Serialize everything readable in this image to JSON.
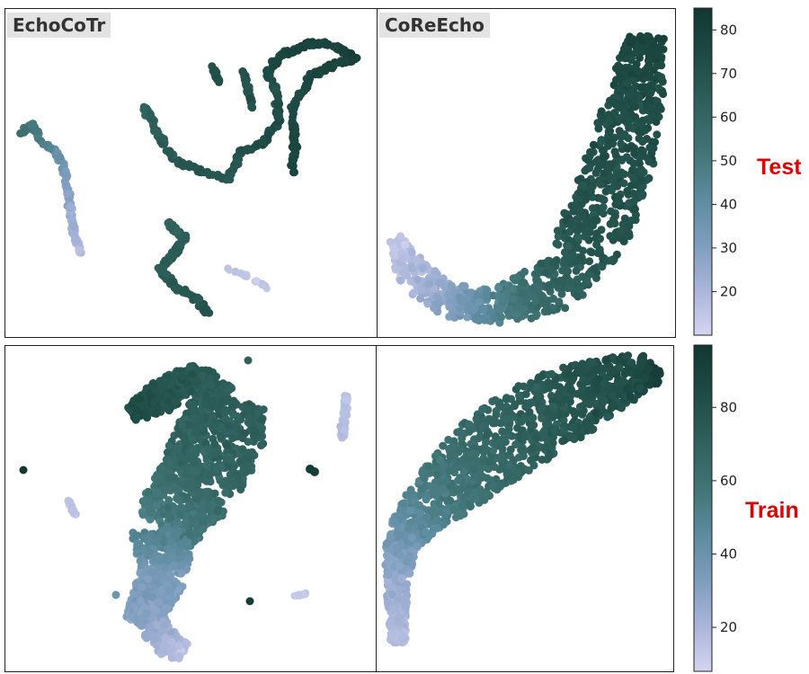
{
  "chart_data": {
    "type": "scatter",
    "panels": [
      {
        "row": "Test",
        "method": "EchoCoTr"
      },
      {
        "row": "Test",
        "method": "CoReEcho"
      },
      {
        "row": "Train",
        "method": ""
      },
      {
        "row": "Train",
        "method": ""
      }
    ],
    "rows": [
      {
        "label": "Test",
        "colorbar": {
          "min": 10,
          "max": 85,
          "ticks": [
            20,
            30,
            40,
            50,
            60,
            70,
            80
          ]
        }
      },
      {
        "label": "Train",
        "colorbar": {
          "min": 8,
          "max": 97,
          "ticks": [
            20,
            40,
            60,
            80
          ]
        }
      }
    ],
    "colormap": [
      "#d4d4ef",
      "#a8b4d9",
      "#7c9cbc",
      "#5a8a9c",
      "#3f7373",
      "#2e5f5b",
      "#1e4a44",
      "#123831"
    ],
    "axes_visible": false,
    "grid": false
  }
}
